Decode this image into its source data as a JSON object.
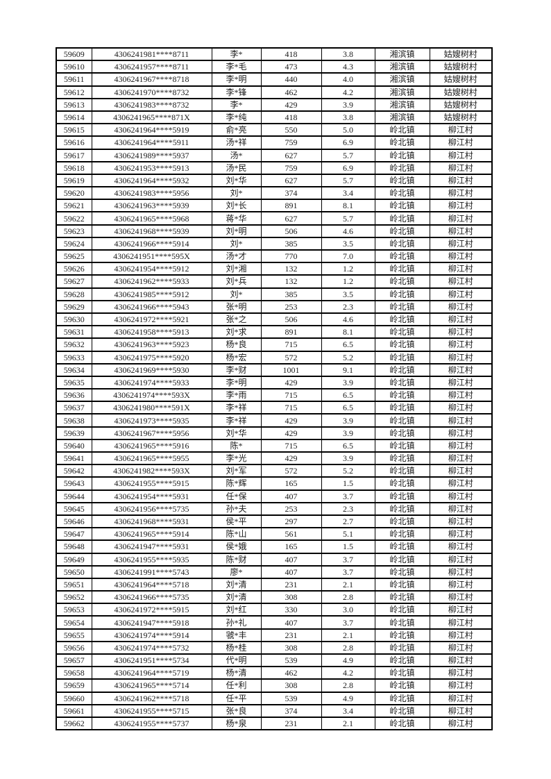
{
  "page": {
    "background_color": "#ffffff",
    "text_color": "#1a1a1a",
    "border_color": "#000000"
  },
  "table": {
    "columns_semantic": [
      "serial-number",
      "masked-id-number",
      "masked-name",
      "amount",
      "rate",
      "town",
      "village"
    ],
    "rows": [
      [
        "59609",
        "4306241981****8711",
        "李*",
        "418",
        "3.8",
        "湘滨镇",
        "姑嫂树村"
      ],
      [
        "59610",
        "4306241957****8711",
        "李*毛",
        "473",
        "4.3",
        "湘滨镇",
        "姑嫂树村"
      ],
      [
        "59611",
        "4306241967****8718",
        "李*明",
        "440",
        "4.0",
        "湘滨镇",
        "姑嫂树村"
      ],
      [
        "59612",
        "4306241970****8732",
        "李*锋",
        "462",
        "4.2",
        "湘滨镇",
        "姑嫂树村"
      ],
      [
        "59613",
        "4306241983****8732",
        "李*",
        "429",
        "3.9",
        "湘滨镇",
        "姑嫂树村"
      ],
      [
        "59614",
        "4306241965****871X",
        "李*纯",
        "418",
        "3.8",
        "湘滨镇",
        "姑嫂树村"
      ],
      [
        "59615",
        "4306241964****5919",
        "俞*亮",
        "550",
        "5.0",
        "岭北镇",
        "柳江村"
      ],
      [
        "59616",
        "4306241964****5911",
        "汤*祥",
        "759",
        "6.9",
        "岭北镇",
        "柳江村"
      ],
      [
        "59617",
        "4306241989****5937",
        "汤*",
        "627",
        "5.7",
        "岭北镇",
        "柳江村"
      ],
      [
        "59618",
        "4306241953****5913",
        "汤*民",
        "759",
        "6.9",
        "岭北镇",
        "柳江村"
      ],
      [
        "59619",
        "4306241964****5932",
        "刘*华",
        "627",
        "5.7",
        "岭北镇",
        "柳江村"
      ],
      [
        "59620",
        "4306241983****5956",
        "刘*",
        "374",
        "3.4",
        "岭北镇",
        "柳江村"
      ],
      [
        "59621",
        "4306241963****5939",
        "刘*长",
        "891",
        "8.1",
        "岭北镇",
        "柳江村"
      ],
      [
        "59622",
        "4306241965****5968",
        "蒋*华",
        "627",
        "5.7",
        "岭北镇",
        "柳江村"
      ],
      [
        "59623",
        "4306241968****5939",
        "刘*明",
        "506",
        "4.6",
        "岭北镇",
        "柳江村"
      ],
      [
        "59624",
        "4306241966****5914",
        "刘*",
        "385",
        "3.5",
        "岭北镇",
        "柳江村"
      ],
      [
        "59625",
        "4306241951****595X",
        "汤*才",
        "770",
        "7.0",
        "岭北镇",
        "柳江村"
      ],
      [
        "59626",
        "4306241954****5912",
        "刘*湘",
        "132",
        "1.2",
        "岭北镇",
        "柳江村"
      ],
      [
        "59627",
        "4306241962****5933",
        "刘*兵",
        "132",
        "1.2",
        "岭北镇",
        "柳江村"
      ],
      [
        "59628",
        "4306241985****5912",
        "刘*",
        "385",
        "3.5",
        "岭北镇",
        "柳江村"
      ],
      [
        "59629",
        "4306241966****5943",
        "张*明",
        "253",
        "2.3",
        "岭北镇",
        "柳江村"
      ],
      [
        "59630",
        "4306241972****5921",
        "张*之",
        "506",
        "4.6",
        "岭北镇",
        "柳江村"
      ],
      [
        "59631",
        "4306241958****5913",
        "刘*求",
        "891",
        "8.1",
        "岭北镇",
        "柳江村"
      ],
      [
        "59632",
        "4306241963****5923",
        "杨*良",
        "715",
        "6.5",
        "岭北镇",
        "柳江村"
      ],
      [
        "59633",
        "4306241975****5920",
        "杨*宏",
        "572",
        "5.2",
        "岭北镇",
        "柳江村"
      ],
      [
        "59634",
        "4306241969****5930",
        "李*财",
        "1001",
        "9.1",
        "岭北镇",
        "柳江村"
      ],
      [
        "59635",
        "4306241974****5933",
        "李*明",
        "429",
        "3.9",
        "岭北镇",
        "柳江村"
      ],
      [
        "59636",
        "4306241974****593X",
        "李*雨",
        "715",
        "6.5",
        "岭北镇",
        "柳江村"
      ],
      [
        "59637",
        "4306241980****591X",
        "李*祥",
        "715",
        "6.5",
        "岭北镇",
        "柳江村"
      ],
      [
        "59638",
        "4306241973****5935",
        "李*祥",
        "429",
        "3.9",
        "岭北镇",
        "柳江村"
      ],
      [
        "59639",
        "4306241967****5956",
        "刘*华",
        "429",
        "3.9",
        "岭北镇",
        "柳江村"
      ],
      [
        "59640",
        "4306241965****5916",
        "陈*",
        "715",
        "6.5",
        "岭北镇",
        "柳江村"
      ],
      [
        "59641",
        "4306241965****5955",
        "李*光",
        "429",
        "3.9",
        "岭北镇",
        "柳江村"
      ],
      [
        "59642",
        "4306241982****593X",
        "刘*军",
        "572",
        "5.2",
        "岭北镇",
        "柳江村"
      ],
      [
        "59643",
        "4306241955****5915",
        "陈*辉",
        "165",
        "1.5",
        "岭北镇",
        "柳江村"
      ],
      [
        "59644",
        "4306241954****5931",
        "任*保",
        "407",
        "3.7",
        "岭北镇",
        "柳江村"
      ],
      [
        "59645",
        "4306241956****5735",
        "孙*夫",
        "253",
        "2.3",
        "岭北镇",
        "柳江村"
      ],
      [
        "59646",
        "4306241968****5931",
        "侯*平",
        "297",
        "2.7",
        "岭北镇",
        "柳江村"
      ],
      [
        "59647",
        "4306241965****5914",
        "陈*山",
        "561",
        "5.1",
        "岭北镇",
        "柳江村"
      ],
      [
        "59648",
        "4306241947****5931",
        "侯*娥",
        "165",
        "1.5",
        "岭北镇",
        "柳江村"
      ],
      [
        "59649",
        "4306241955****5935",
        "陈*财",
        "407",
        "3.7",
        "岭北镇",
        "柳江村"
      ],
      [
        "59650",
        "4306241991****5743",
        "廖*",
        "407",
        "3.7",
        "岭北镇",
        "柳江村"
      ],
      [
        "59651",
        "4306241964****5718",
        "刘*清",
        "231",
        "2.1",
        "岭北镇",
        "柳江村"
      ],
      [
        "59652",
        "4306241966****5735",
        "刘*清",
        "308",
        "2.8",
        "岭北镇",
        "柳江村"
      ],
      [
        "59653",
        "4306241972****5915",
        "刘*红",
        "330",
        "3.0",
        "岭北镇",
        "柳江村"
      ],
      [
        "59654",
        "4306241947****5918",
        "孙*礼",
        "407",
        "3.7",
        "岭北镇",
        "柳江村"
      ],
      [
        "59655",
        "4306241974****5914",
        "虢*丰",
        "231",
        "2.1",
        "岭北镇",
        "柳江村"
      ],
      [
        "59656",
        "4306241974****5732",
        "杨*桂",
        "308",
        "2.8",
        "岭北镇",
        "柳江村"
      ],
      [
        "59657",
        "4306241951****5734",
        "代*明",
        "539",
        "4.9",
        "岭北镇",
        "柳江村"
      ],
      [
        "59658",
        "4306241964****5719",
        "杨*清",
        "462",
        "4.2",
        "岭北镇",
        "柳江村"
      ],
      [
        "59659",
        "4306241965****5714",
        "任*利",
        "308",
        "2.8",
        "岭北镇",
        "柳江村"
      ],
      [
        "59660",
        "4306241962****5718",
        "任*平",
        "539",
        "4.9",
        "岭北镇",
        "柳江村"
      ],
      [
        "59661",
        "4306241955****5715",
        "张*良",
        "374",
        "3.4",
        "岭北镇",
        "柳江村"
      ],
      [
        "59662",
        "4306241955****5737",
        "杨*泉",
        "231",
        "2.1",
        "岭北镇",
        "柳江村"
      ]
    ]
  }
}
